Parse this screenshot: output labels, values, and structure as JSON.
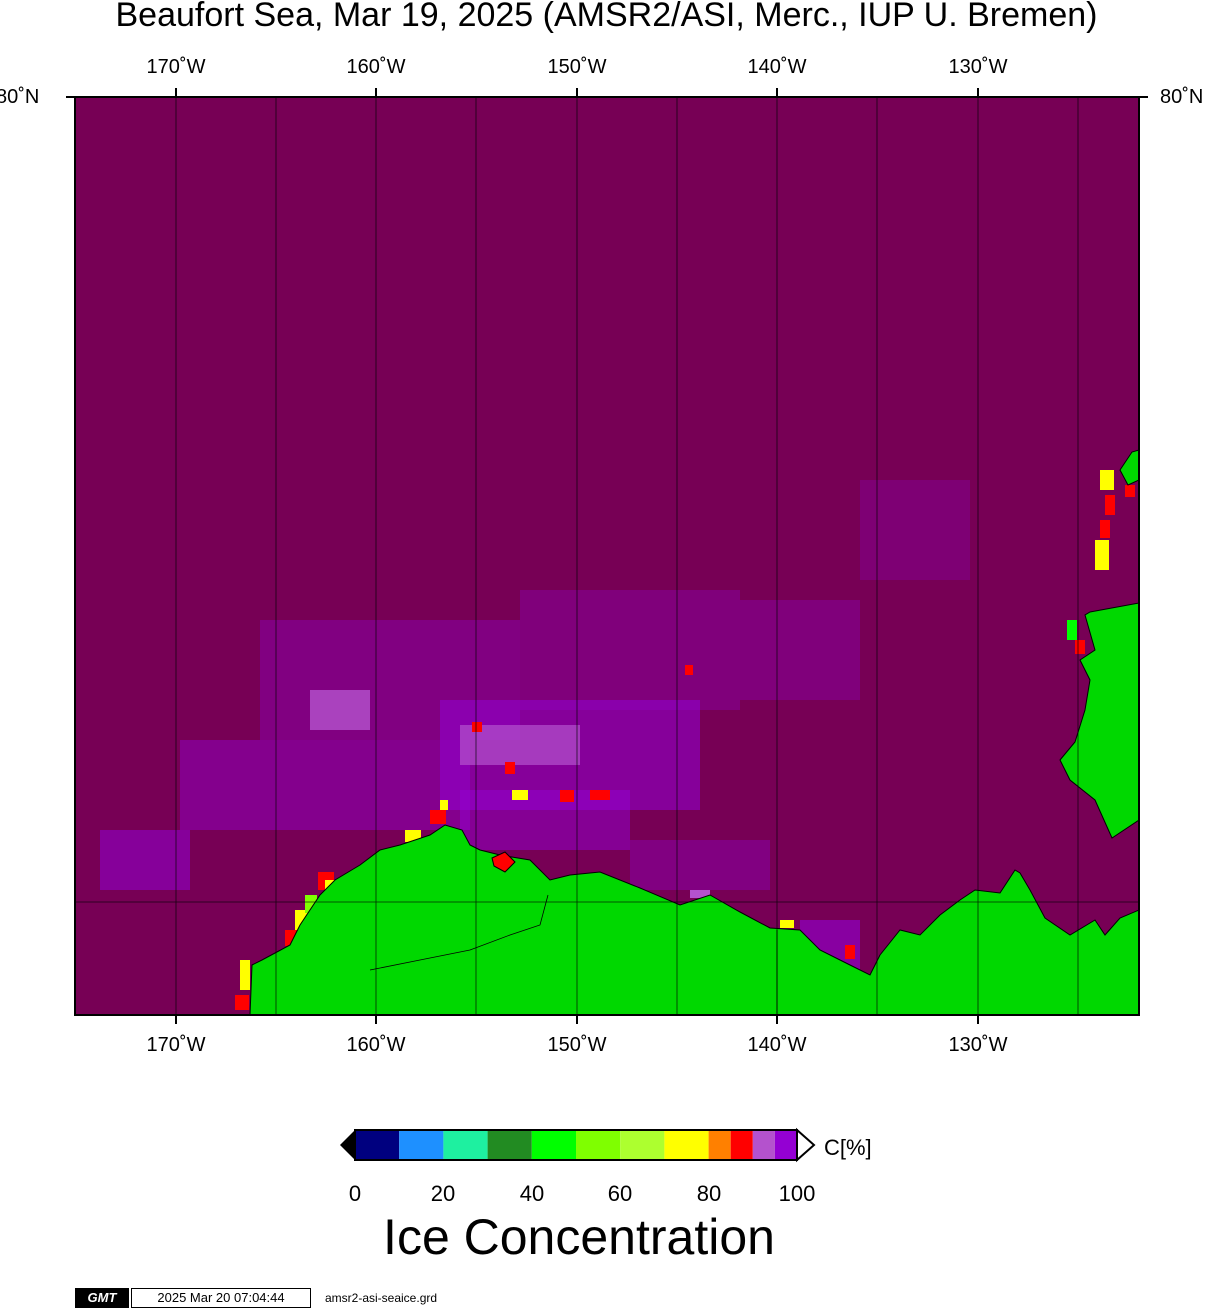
{
  "title": "Beaufort Sea, Mar 19, 2025 (AMSR2/ASI, Merc., IUP U. Bremen)",
  "map": {
    "longitude_ticks": [
      "170˚W",
      "160˚W",
      "150˚W",
      "140˚W",
      "130˚W"
    ],
    "latitude_ticks": [
      "80˚N"
    ],
    "colors": {
      "open_ice_100": "#770055",
      "land": "#00d800",
      "grid": "#000000"
    }
  },
  "colorbar": {
    "tick_labels": [
      "0",
      "20",
      "40",
      "60",
      "80",
      "100"
    ],
    "unit": "C[%]",
    "colors": [
      "#00007f",
      "#1e90ff",
      "#1ef0a0",
      "#228b22",
      "#00ff00",
      "#7fff00",
      "#adff2f",
      "#ffff00",
      "#ff8000",
      "#ff0000",
      "#b452cd",
      "#9400d3"
    ],
    "caption": "Ice Concentration"
  },
  "footer": {
    "logo": "GMT",
    "timestamp": "2025 Mar 20 07:04:44",
    "filename": "amsr2-asi-seaice.grd"
  }
}
